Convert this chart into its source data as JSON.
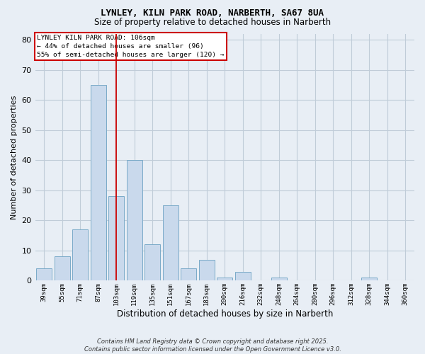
{
  "title_line1": "LYNLEY, KILN PARK ROAD, NARBERTH, SA67 8UA",
  "title_line2": "Size of property relative to detached houses in Narberth",
  "xlabel": "Distribution of detached houses by size in Narberth",
  "ylabel": "Number of detached properties",
  "bins": [
    "39sqm",
    "55sqm",
    "71sqm",
    "87sqm",
    "103sqm",
    "119sqm",
    "135sqm",
    "151sqm",
    "167sqm",
    "183sqm",
    "200sqm",
    "216sqm",
    "232sqm",
    "248sqm",
    "264sqm",
    "280sqm",
    "296sqm",
    "312sqm",
    "328sqm",
    "344sqm",
    "360sqm"
  ],
  "values": [
    4,
    8,
    17,
    65,
    28,
    40,
    12,
    25,
    4,
    7,
    1,
    3,
    0,
    1,
    0,
    0,
    0,
    0,
    1,
    0,
    0
  ],
  "bar_color": "#c9d9ec",
  "bar_edge_color": "#7aaac8",
  "red_line_index": 4,
  "annotation_title": "LYNLEY KILN PARK ROAD: 106sqm",
  "annotation_line2": "← 44% of detached houses are smaller (96)",
  "annotation_line3": "55% of semi-detached houses are larger (120) →",
  "annotation_box_color": "#ffffff",
  "annotation_box_edge": "#cc0000",
  "red_line_color": "#cc0000",
  "ylim": [
    0,
    82
  ],
  "yticks": [
    0,
    10,
    20,
    30,
    40,
    50,
    60,
    70,
    80
  ],
  "footer": "Contains HM Land Registry data © Crown copyright and database right 2025.\nContains public sector information licensed under the Open Government Licence v3.0.",
  "background_color": "#e8eef5",
  "plot_bg_color": "#e8eef5",
  "grid_color": "#c0ccd8",
  "title_fontsize": 9,
  "subtitle_fontsize": 8.5
}
